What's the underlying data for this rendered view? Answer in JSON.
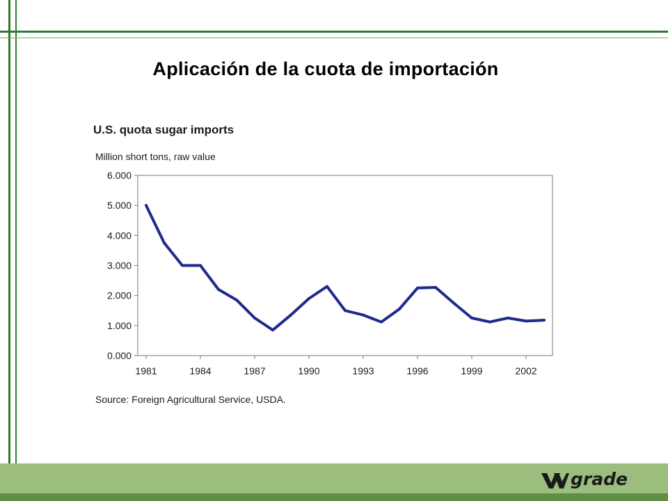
{
  "slide": {
    "title": "Aplicación de la cuota de importación",
    "logo_text": "grade",
    "colors": {
      "frame": "#2f7a2f",
      "footer": "#9bbd7d",
      "line": "#1f2a8c"
    }
  },
  "chart_data": {
    "type": "line",
    "title": "U.S. quota sugar imports",
    "subtitle": "Million short tons, raw value",
    "source": "Source: Foreign Agricultural Service, USDA.",
    "x_ticks": [
      "1981",
      "1984",
      "1987",
      "1990",
      "1993",
      "1996",
      "1999",
      "2002"
    ],
    "y_ticks": [
      "0.000",
      "1.000",
      "2.000",
      "3.000",
      "4.000",
      "5.000",
      "6.000"
    ],
    "ylim": [
      0,
      6
    ],
    "xlim": [
      1981,
      2003
    ],
    "grid": false,
    "series": [
      {
        "x": [
          1981,
          1982,
          1983,
          1984,
          1985,
          1986,
          1987,
          1988,
          1989,
          1990,
          1991,
          1992,
          1993,
          1994,
          1995,
          1996,
          1997,
          1998,
          1999,
          2000,
          2001,
          2002,
          2003
        ],
        "values": [
          5.0,
          3.75,
          3.0,
          3.0,
          2.2,
          1.85,
          1.25,
          0.85,
          1.35,
          1.9,
          2.3,
          1.5,
          1.35,
          1.12,
          1.55,
          2.25,
          2.27,
          1.75,
          1.25,
          1.12,
          1.25,
          1.15,
          1.18
        ]
      }
    ]
  }
}
